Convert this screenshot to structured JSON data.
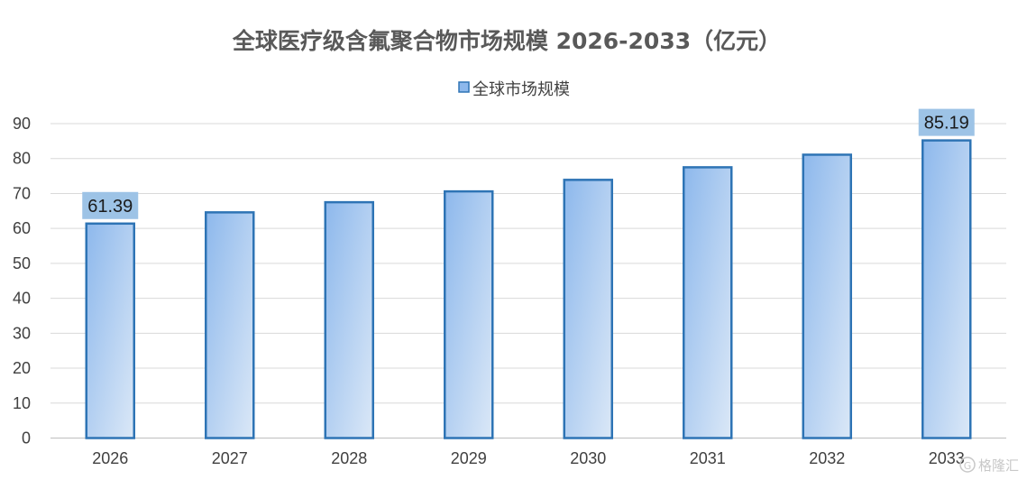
{
  "chart_data": {
    "type": "bar",
    "title": "全球医疗级含氟聚合物市场规模 2026-2033（亿元）",
    "categories": [
      "2026",
      "2027",
      "2028",
      "2029",
      "2030",
      "2031",
      "2032",
      "2033"
    ],
    "series": [
      {
        "name": "全球市场规模",
        "values": [
          61.39,
          64.6,
          67.5,
          70.6,
          73.9,
          77.5,
          81.1,
          85.19
        ]
      }
    ],
    "data_labels": [
      {
        "category": "2026",
        "text": "61.39"
      },
      {
        "category": "2033",
        "text": "85.19"
      }
    ],
    "yticks": [
      0,
      10,
      20,
      30,
      40,
      50,
      60,
      70,
      80,
      90
    ],
    "ylim": [
      0,
      90
    ],
    "grid": true,
    "legend_position": "top-center",
    "colors": {
      "bar_top": "#8db8ec",
      "bar_bottom": "#dbe8f7",
      "bar_border": "#2e74b5",
      "label_box": "#9dc3e6",
      "grid": "#d9d9d9",
      "axis": "#bfbfbf"
    }
  },
  "watermark": {
    "text": "格隆汇",
    "icon": "G"
  }
}
